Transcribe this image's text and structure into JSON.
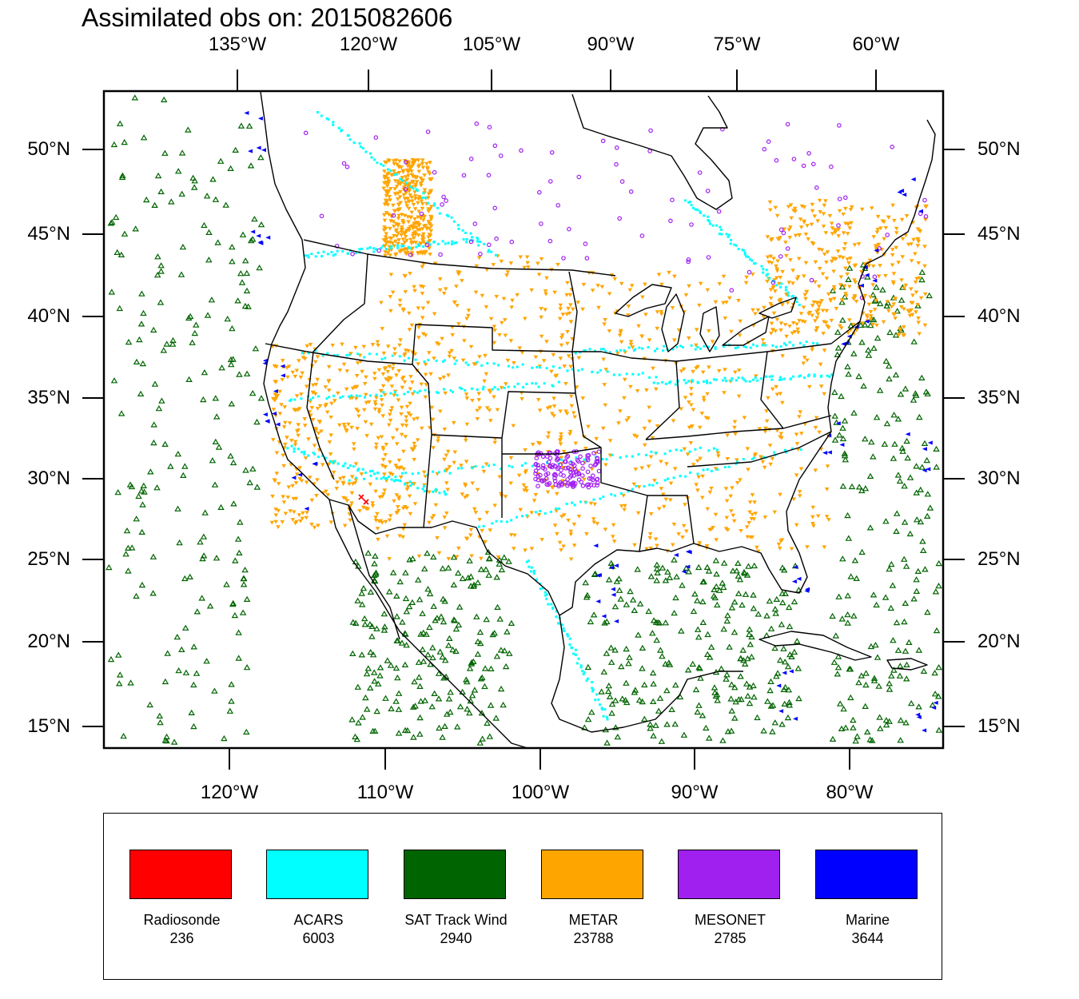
{
  "title": "Assimilated obs on: 2015082606",
  "top_lon_labels": [
    "135°W",
    "120°W",
    "105°W",
    "90°W",
    "75°W",
    "60°W"
  ],
  "bottom_lon_labels": [
    "120°W",
    "110°W",
    "100°W",
    "90°W",
    "80°W"
  ],
  "lat_labels": [
    "50°N",
    "45°N",
    "40°N",
    "35°N",
    "30°N",
    "25°N",
    "20°N",
    "15°N"
  ],
  "legend": [
    {
      "label": "Radiosonde",
      "count": "236",
      "color": "#ff0000"
    },
    {
      "label": "ACARS",
      "count": "6003",
      "color": "#00ffff"
    },
    {
      "label": "SAT Track Wind",
      "count": "2940",
      "color": "#006400"
    },
    {
      "label": "METAR",
      "count": "23788",
      "color": "#ffa500"
    },
    {
      "label": "MESONET",
      "count": "2785",
      "color": "#a020f0"
    },
    {
      "label": "Marine",
      "count": "3644",
      "color": "#0000ff"
    }
  ],
  "colors": {
    "radiosonde": "#ff0000",
    "acars": "#00ffff",
    "sat_track_wind": "#006400",
    "metar": "#ffa500",
    "mesonet": "#a020f0",
    "marine": "#0000ff"
  }
}
